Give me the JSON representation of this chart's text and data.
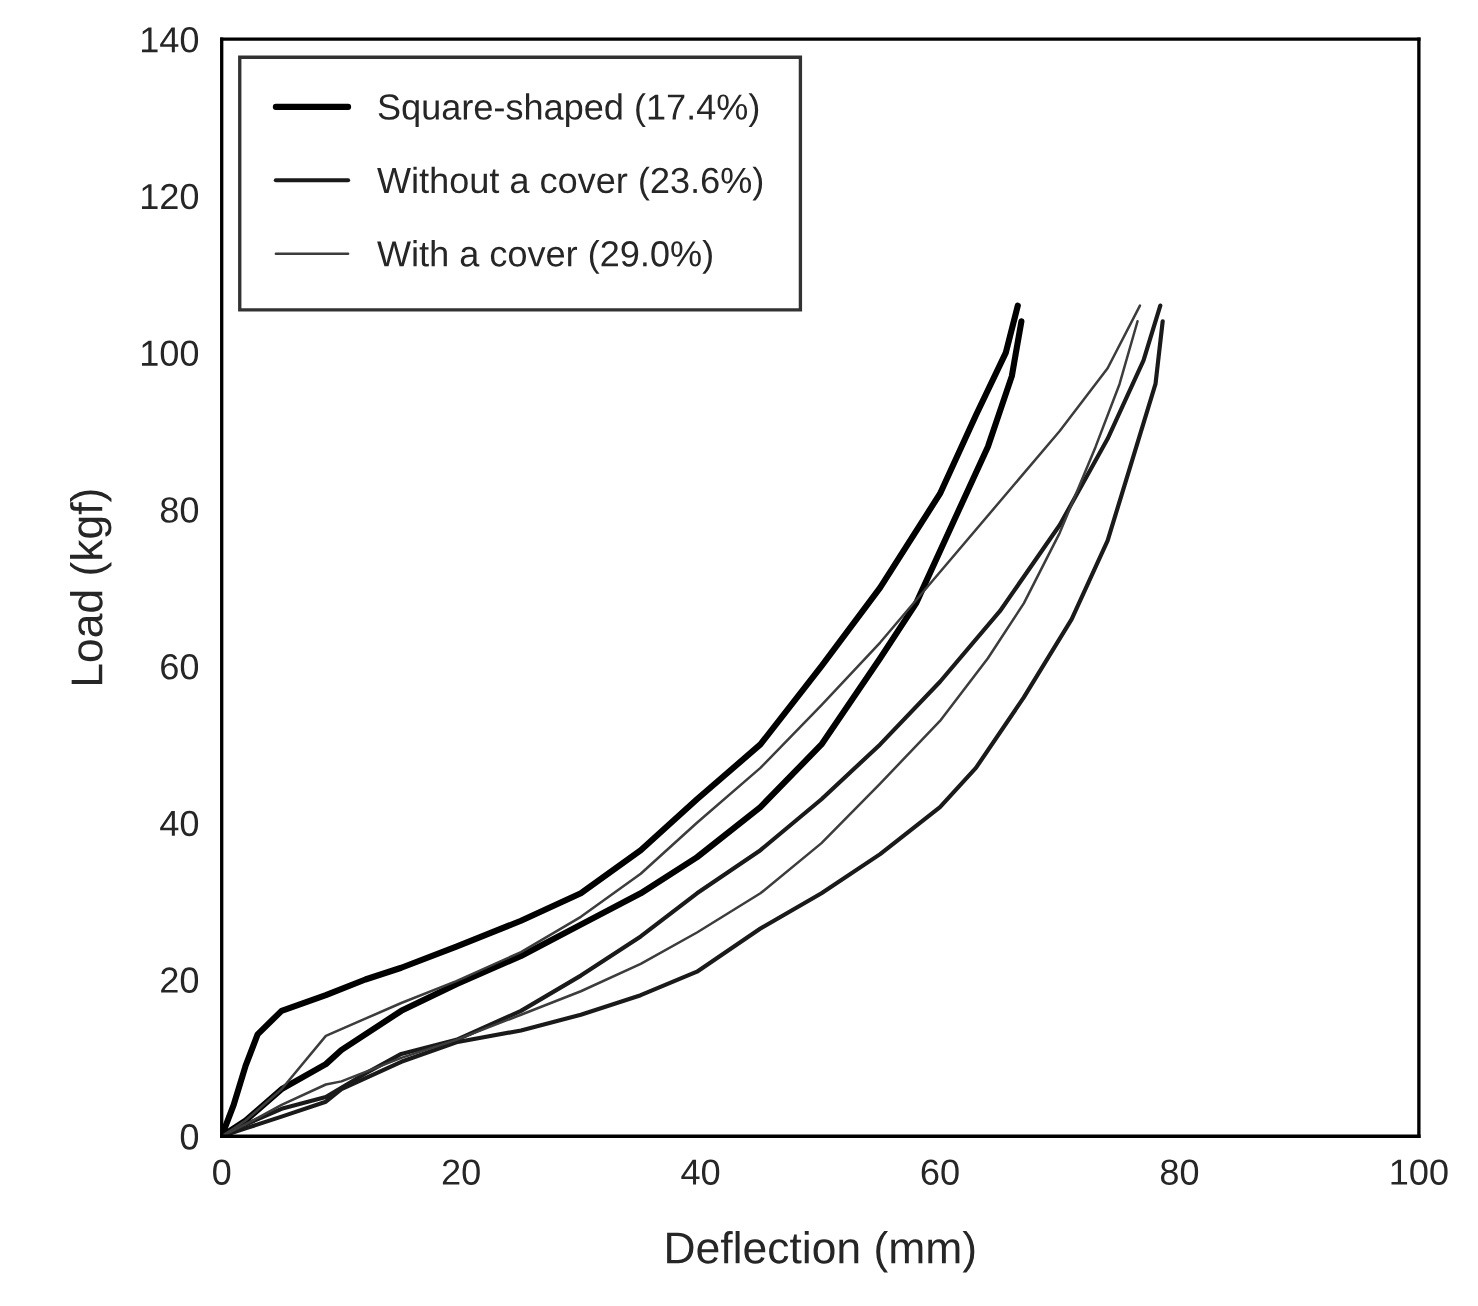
{
  "chart_data": {
    "type": "line",
    "xlabel": "Deflection (mm)",
    "ylabel": "Load (kgf)",
    "xlim": [
      0,
      100
    ],
    "xticks": [
      0,
      20,
      40,
      60,
      80,
      100
    ],
    "ylim": [
      0,
      140
    ],
    "yticks": [
      0,
      20,
      40,
      60,
      80,
      100,
      120,
      140
    ],
    "grid": false,
    "legend": "top left",
    "marker": "none",
    "line_style": "solid",
    "series": [
      {
        "name": "Square-shaped (17.4%)",
        "color": "#000000",
        "x": [
          0,
          1,
          2,
          3,
          5,
          8.7,
          12,
          15,
          19.6,
          25,
          30,
          35,
          39.7,
          45,
          50.1,
          55,
          60,
          63,
          65.5,
          66.5
        ],
        "values": [
          0,
          4,
          9,
          13,
          16,
          18,
          20,
          21.5,
          24.2,
          27.5,
          31,
          36.5,
          43,
          50,
          60,
          70,
          82,
          92,
          100,
          106
        ]
      },
      {
        "color": "#000000",
        "x": [
          0,
          2,
          5,
          8.7,
          10,
          15,
          19.6,
          25,
          30,
          35,
          39.7,
          45,
          50.1,
          55,
          58,
          61,
          64,
          66,
          66.8
        ],
        "values": [
          0,
          2,
          6,
          9.2,
          11,
          16,
          19.4,
          23,
          27,
          31,
          35.6,
          42,
          50,
          61,
          68,
          78,
          88,
          97,
          104
        ]
      },
      {
        "name": "Without a cover (23.6%)",
        "color": "#1a1a1a",
        "x": [
          0,
          2,
          5,
          8.7,
          12,
          15,
          19.6,
          25,
          30,
          35,
          39.7,
          45,
          50.1,
          55,
          60,
          65,
          70,
          74,
          77,
          78.4
        ],
        "values": [
          0,
          1.5,
          3.5,
          5,
          8,
          10.5,
          12.3,
          16,
          20.5,
          25.5,
          31,
          36.5,
          43,
          50,
          58,
          67,
          78,
          89,
          99,
          106
        ]
      },
      {
        "color": "#1a1a1a",
        "x": [
          0,
          2,
          5,
          8.7,
          10,
          15,
          19.6,
          25,
          30,
          35,
          39.7,
          45,
          50.1,
          55,
          60,
          63,
          67,
          71,
          74,
          76,
          78,
          78.6
        ],
        "values": [
          0,
          1,
          2.5,
          4.4,
          6,
          9.5,
          12,
          13.5,
          15.5,
          18,
          21,
          26.5,
          31,
          36,
          42,
          47,
          56,
          66,
          76,
          86,
          96,
          104
        ]
      },
      {
        "name": "With a cover (29.0%)",
        "color": "#3c3c3c",
        "x": [
          0,
          2,
          5,
          8.7,
          12,
          15,
          19.6,
          25,
          30,
          35,
          39.7,
          45,
          50.1,
          55,
          60,
          65,
          70,
          74,
          76.7
        ],
        "values": [
          0,
          2,
          6,
          12.8,
          15,
          17,
          19.8,
          23.5,
          28,
          33.5,
          40,
          47,
          55,
          63,
          72,
          81,
          90,
          98,
          106
        ]
      },
      {
        "color": "#3c3c3c",
        "x": [
          0,
          2,
          5,
          8.7,
          10,
          15,
          19.6,
          25,
          30,
          35,
          39.7,
          45,
          50.1,
          55,
          60,
          64,
          67,
          70,
          73,
          75,
          76.5
        ],
        "values": [
          0,
          1.5,
          4,
          6.6,
          7,
          10,
          12.3,
          15.5,
          18.5,
          22,
          26,
          31,
          37.4,
          45,
          53,
          61,
          68,
          77,
          88,
          96,
          104
        ]
      }
    ]
  }
}
